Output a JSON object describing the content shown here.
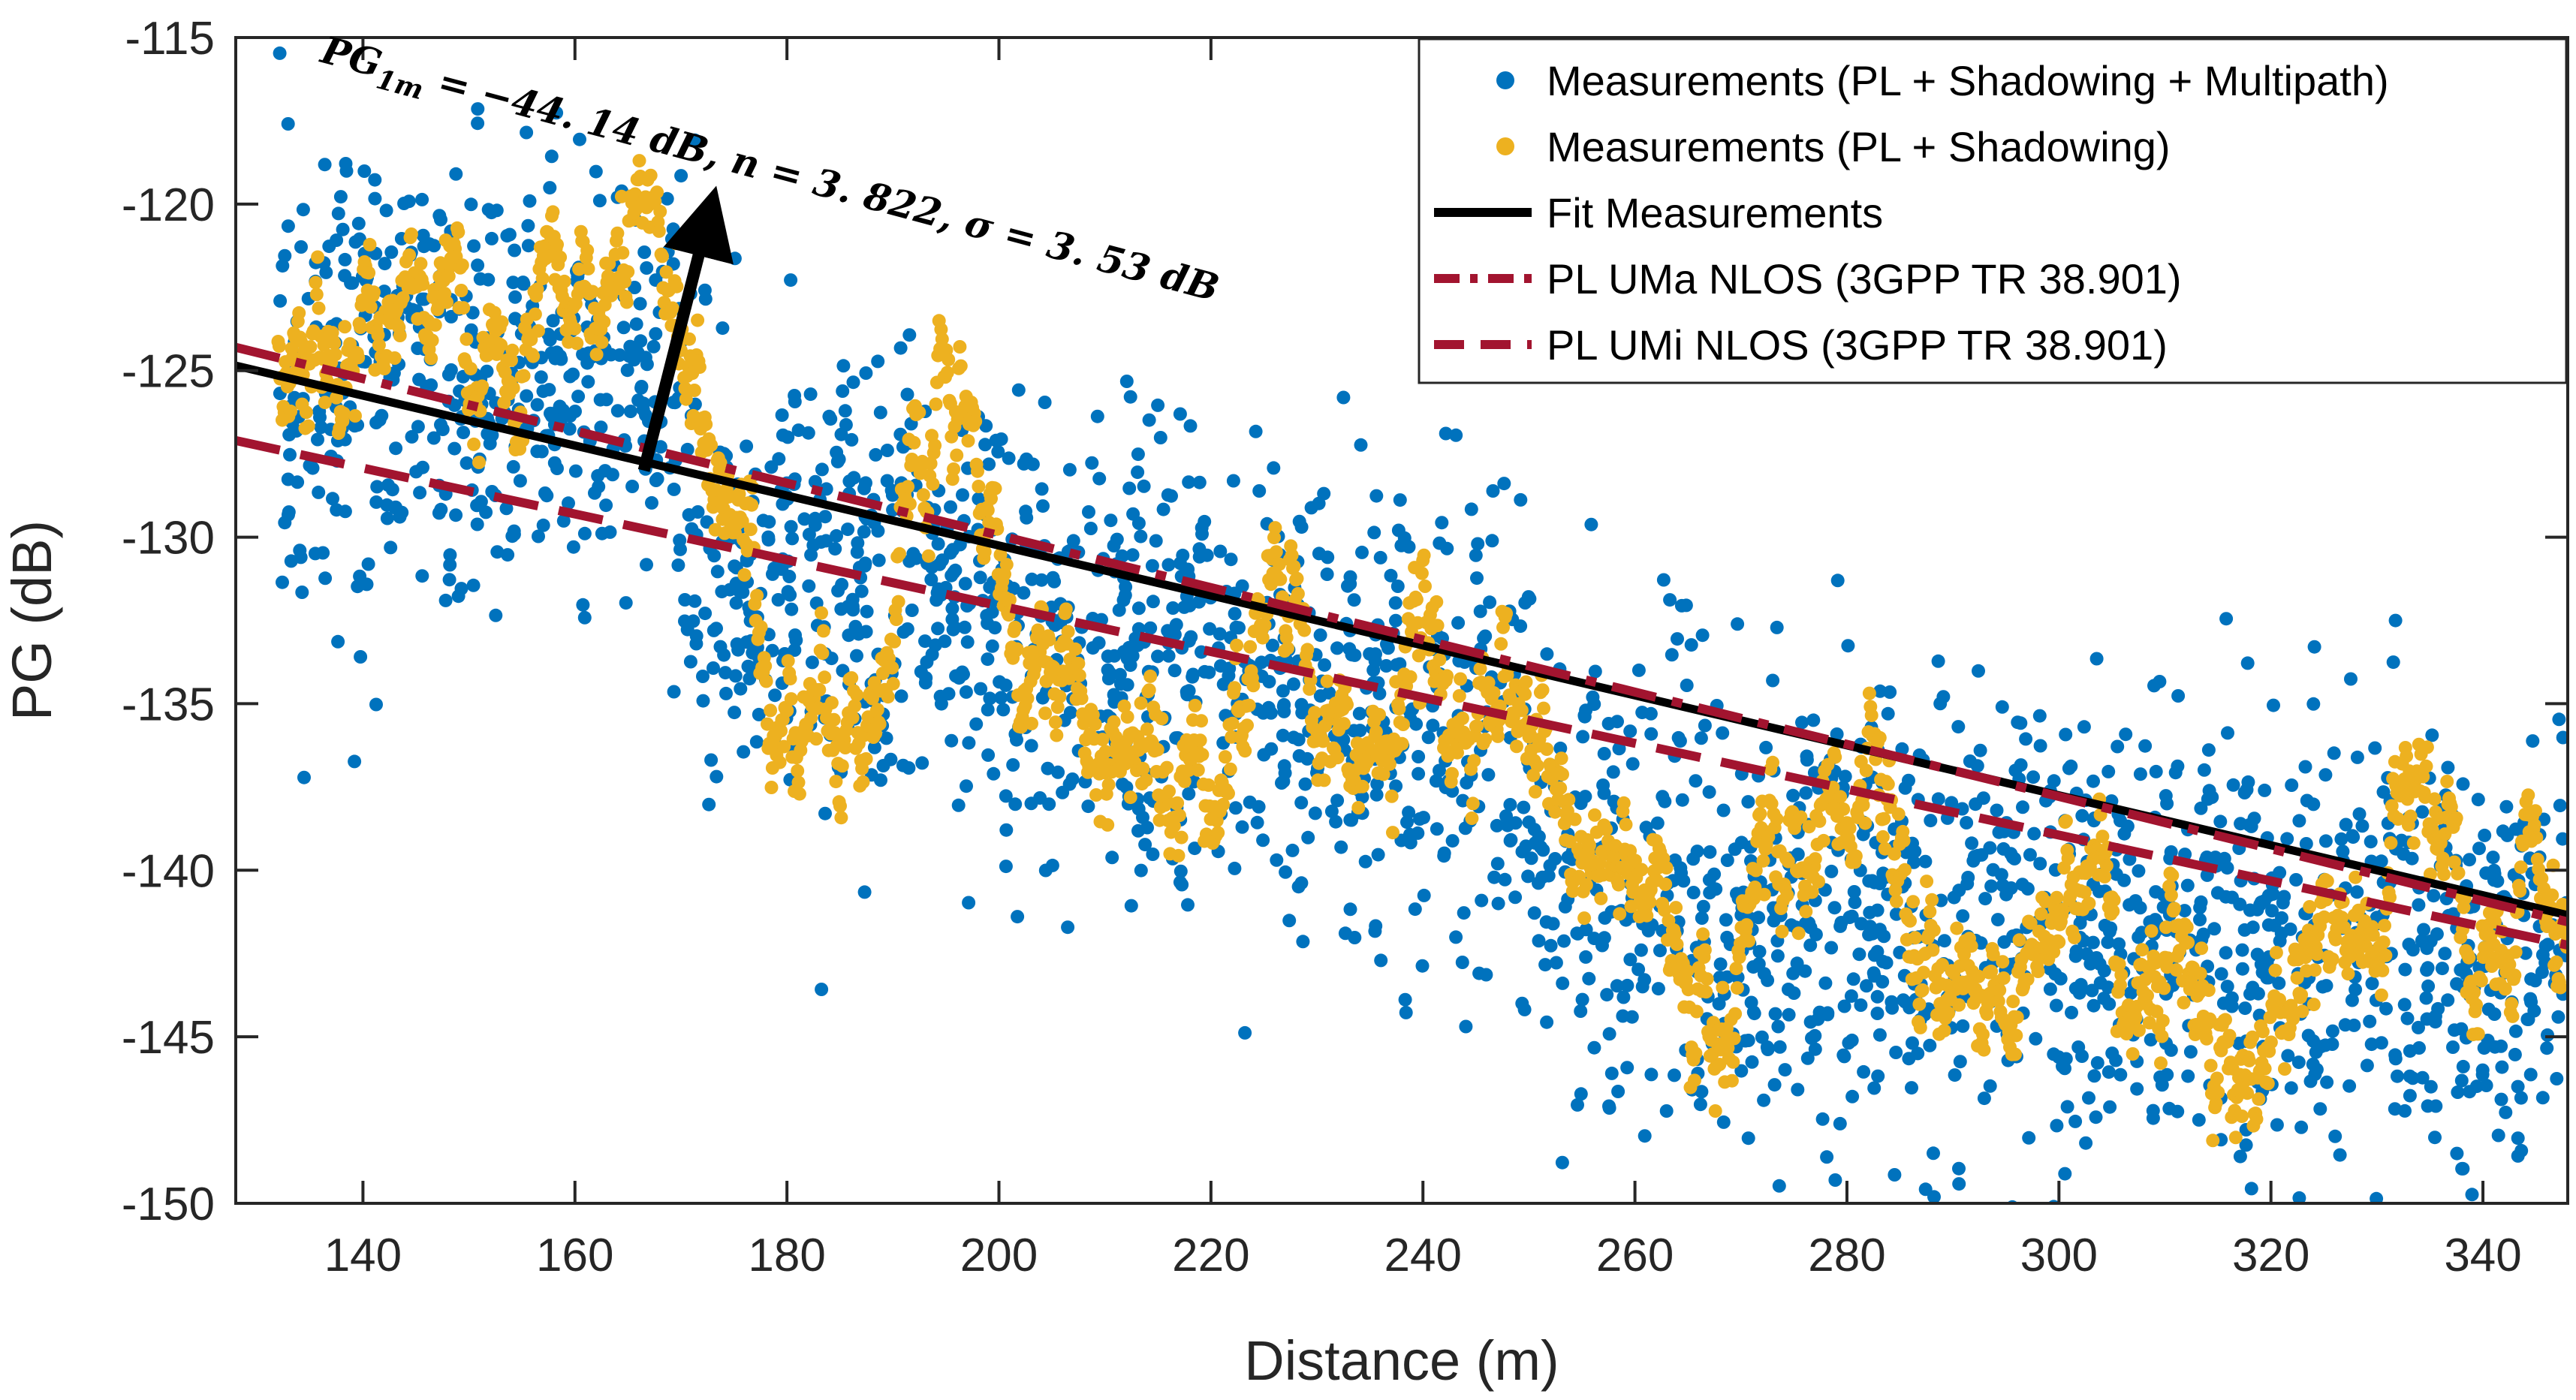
{
  "chart_data": {
    "type": "scatter",
    "title": "",
    "xlabel": "Distance (m)",
    "ylabel": "PG (dB)",
    "xlim": [
      128,
      348
    ],
    "ylim": [
      -150,
      -115
    ],
    "xticks": [
      140,
      160,
      180,
      200,
      220,
      240,
      260,
      280,
      300,
      320,
      340
    ],
    "yticks": [
      -115,
      -120,
      -125,
      -130,
      -135,
      -140,
      -145,
      -150
    ],
    "xtick_labels": [
      "140",
      "160",
      "180",
      "200",
      "220",
      "240",
      "260",
      "280",
      "300",
      "320",
      "340"
    ],
    "ytick_labels": [
      "-115",
      "-120",
      "-125",
      "-130",
      "-135",
      "-140",
      "-145",
      "-150"
    ],
    "grid": false,
    "legend_position": "top-right",
    "colors": {
      "measurements_multipath": "#0072BD",
      "measurements_shadowing": "#EDB120",
      "fit": "#000000",
      "pl_3gpp": "#A2142F"
    },
    "series": [
      {
        "name": "Measurements (PL + Shadowing + Multipath)",
        "style": "scatter",
        "color": "#0072BD",
        "x_range": [
          132,
          348
        ],
        "trend": {
          "x": [
            132,
            170,
            172,
            248,
            252,
            348
          ],
          "y": [
            -125.0,
            -125.5,
            -131.0,
            -136.0,
            -140.5,
            -143.0
          ]
        },
        "spread_db": 3.5
      },
      {
        "name": "Measurements (PL + Shadowing)",
        "style": "scatter",
        "color": "#EDB120",
        "x_range": [
          132,
          348
        ],
        "trend": {
          "x": [
            132,
            170,
            172,
            248,
            252,
            348
          ],
          "y": [
            -125.0,
            -125.5,
            -131.0,
            -136.0,
            -140.5,
            -143.0
          ]
        },
        "spread_db": 2.5
      },
      {
        "name": "Fit Measurements",
        "style": "solid",
        "color": "#000000",
        "x": [
          128,
          348
        ],
        "y": [
          -124.85,
          -141.35
        ]
      },
      {
        "name": "PL UMa NLOS (3GPP TR 38.901)",
        "style": "dash-dot",
        "color": "#A2142F",
        "x": [
          128,
          348
        ],
        "y": [
          -124.3,
          -141.55
        ]
      },
      {
        "name": "PL UMi NLOS (3GPP TR 38.901)",
        "style": "dashed",
        "color": "#A2142F",
        "x": [
          128,
          348
        ],
        "y": [
          -127.1,
          -142.25
        ]
      }
    ],
    "annotation": {
      "text_prefix": "PG",
      "text_subscript": "1m",
      "text_rest": " = −44. 14 dB, n = 3. 822, σ = 3. 53 dB",
      "arrow_from": {
        "x": 166.5,
        "y": -128.0
      },
      "arrow_to": {
        "x": 172.5,
        "y": -120.5
      }
    }
  }
}
